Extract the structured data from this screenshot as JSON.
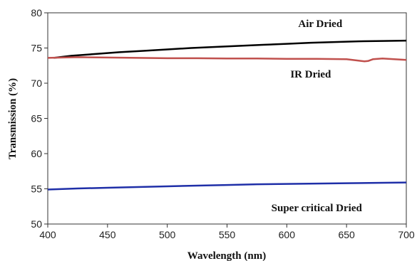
{
  "chart_data": {
    "type": "line",
    "xlabel": "Wavelength (nm)",
    "ylabel": "Transmission (%)",
    "xlim": [
      400,
      700
    ],
    "ylim": [
      50,
      80
    ],
    "xticks": [
      400,
      450,
      500,
      550,
      600,
      650,
      700
    ],
    "yticks": [
      50,
      55,
      60,
      65,
      70,
      75,
      80
    ],
    "grid": false,
    "legend": "none",
    "series": [
      {
        "name": "Air Dried",
        "color": "#000000",
        "x": [
          405,
          420,
          440,
          460,
          480,
          500,
          520,
          540,
          560,
          580,
          600,
          620,
          640,
          660,
          680,
          700
        ],
        "y": [
          73.6,
          73.9,
          74.15,
          74.4,
          74.6,
          74.8,
          75.0,
          75.15,
          75.3,
          75.45,
          75.6,
          75.75,
          75.85,
          75.95,
          76.0,
          76.05
        ]
      },
      {
        "name": "IR Dried",
        "color": "#c0504d",
        "x": [
          400,
          425,
          450,
          475,
          500,
          525,
          550,
          575,
          600,
          625,
          650,
          660,
          665,
          668,
          672,
          680,
          690,
          700
        ],
        "y": [
          73.6,
          73.7,
          73.65,
          73.6,
          73.55,
          73.55,
          73.5,
          73.5,
          73.45,
          73.45,
          73.4,
          73.2,
          73.1,
          73.15,
          73.4,
          73.5,
          73.4,
          73.3
        ]
      },
      {
        "name": "Super critical Dried",
        "color": "#1f2fa8",
        "x": [
          400,
          425,
          450,
          475,
          500,
          525,
          550,
          575,
          600,
          625,
          650,
          675,
          700
        ],
        "y": [
          54.9,
          55.05,
          55.15,
          55.25,
          55.35,
          55.45,
          55.55,
          55.65,
          55.7,
          55.75,
          55.8,
          55.85,
          55.9
        ]
      }
    ],
    "annotations": [
      {
        "text": "Air Dried",
        "x": 628,
        "y": 78
      },
      {
        "text": "IR Dried",
        "x": 620,
        "y": 70.8
      },
      {
        "text": "Super critical Dried",
        "x": 625,
        "y": 51.8
      }
    ]
  }
}
